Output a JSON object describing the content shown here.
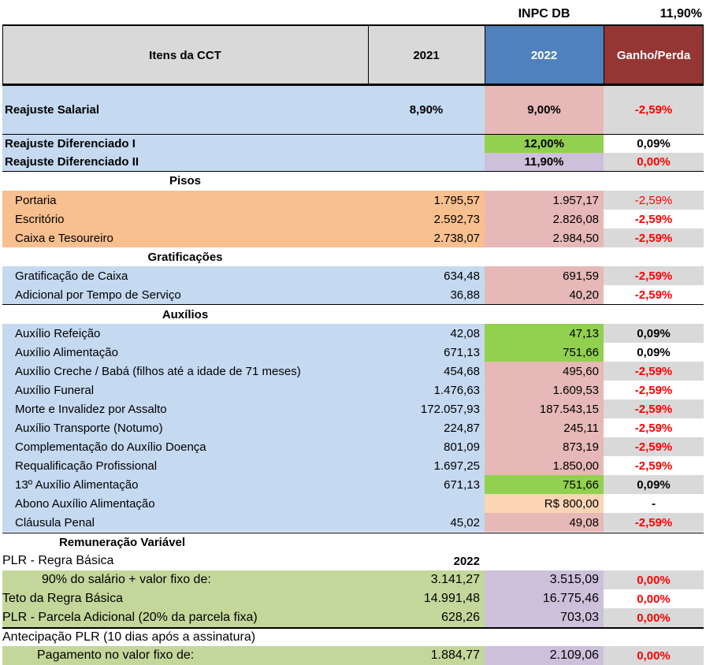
{
  "top": {
    "inpc_label": "INPC DB",
    "inpc_value": "11,90%"
  },
  "header": {
    "items": "Itens da CCT",
    "y2021": "2021",
    "y2022": "2022",
    "gain_loss": "Ganho/Perda"
  },
  "colors": {
    "header_2022": "#4f81bd",
    "header_gain": "#963634",
    "negative_text": "#ff0000"
  },
  "reajustes": [
    {
      "label": "Reajuste Salarial",
      "v2021": "8,90%",
      "v2022": "9,00%",
      "delta": "-2,59%"
    },
    {
      "label": "Reajuste Diferenciado I",
      "v2021": "",
      "v2022": "12,00%",
      "delta": "0,09%"
    },
    {
      "label": "Reajuste Diferenciado II",
      "v2021": "",
      "v2022": "11,90%",
      "delta": "0,00%"
    }
  ],
  "sections": {
    "pisos": "Pisos",
    "gratificacoes": "Gratificações",
    "auxilios": "Auxílios",
    "remuneracao": "Remuneração Variável"
  },
  "pisos": [
    {
      "label": "Portaria",
      "v2021": "1.795,57",
      "v2022": "1.957,17",
      "delta": "-2,59%"
    },
    {
      "label": "Escritório",
      "v2021": "2.592,73",
      "v2022": "2.826,08",
      "delta": "-2,59%"
    },
    {
      "label": "Caixa e Tesoureiro",
      "v2021": "2.738,07",
      "v2022": "2.984,50",
      "delta": "-2,59%"
    }
  ],
  "gratificacoes": [
    {
      "label": "Gratificação de Caixa",
      "v2021": "634,48",
      "v2022": "691,59",
      "delta": "-2,59%"
    },
    {
      "label": "Adicional por Tempo de Serviço",
      "v2021": "36,88",
      "v2022": "40,20",
      "delta": "-2,59%"
    }
  ],
  "auxilios": [
    {
      "label": "Auxílio Refeição",
      "v2021": "42,08",
      "v2022": "47,13",
      "delta": "0,09%"
    },
    {
      "label": "Auxílio Alimentação",
      "v2021": "671,13",
      "v2022": "751,66",
      "delta": "0,09%"
    },
    {
      "label": "Auxílio Creche / Babá (filhos até a idade de 71 meses)",
      "v2021": "454,68",
      "v2022": "495,60",
      "delta": "-2,59%"
    },
    {
      "label": "Auxílio Funeral",
      "v2021": "1.476,63",
      "v2022": "1.609,53",
      "delta": "-2,59%"
    },
    {
      "label": "Morte e Invalidez por Assalto",
      "v2021": "172.057,93",
      "v2022": "187.543,15",
      "delta": "-2,59%"
    },
    {
      "label": "Auxílio Transporte (Notumo)",
      "v2021": "224,87",
      "v2022": "245,11",
      "delta": "-2,59%"
    },
    {
      "label": "Complementação do Auxílio Doença",
      "v2021": "801,09",
      "v2022": "873,19",
      "delta": "-2,59%"
    },
    {
      "label": "Requalificação Profissional",
      "v2021": "1.697,25",
      "v2022": "1.850,00",
      "delta": "-2,59%"
    },
    {
      "label": "13º Auxílio Alimentação",
      "v2021": "671,13",
      "v2022": "751,66",
      "delta": "0,09%"
    },
    {
      "label": "Abono Auxílio Alimentação",
      "v2021": "",
      "v2022": "R$ 800,00",
      "delta": "-"
    },
    {
      "label": "Cláusula Penal",
      "v2021": "45,02",
      "v2022": "49,08",
      "delta": "-2,59%"
    }
  ],
  "plr": {
    "title": "PLR - Regra Básica",
    "year": "2022",
    "rows": [
      {
        "label": "90% do salário + valor fixo de:",
        "v2021": "3.141,27",
        "v2022": "3.515,09",
        "delta": "0,00%"
      },
      {
        "label": "Teto da Regra Básica",
        "v2021": "14.991,48",
        "v2022": "16.775,46",
        "delta": "0,00%"
      },
      {
        "label": "PLR - Parcela Adicional (20% da parcela fixa)",
        "v2021": "628,26",
        "v2022": "703,03",
        "delta": "0,00%"
      }
    ],
    "antecipacao_title": "Antecipação PLR (10 dias após a assinatura)",
    "antecipacao": {
      "label": "Pagamento no valor fixo de:",
      "v2021": "1.884,77",
      "v2022": "2.109,06",
      "delta": "0,00%"
    }
  }
}
